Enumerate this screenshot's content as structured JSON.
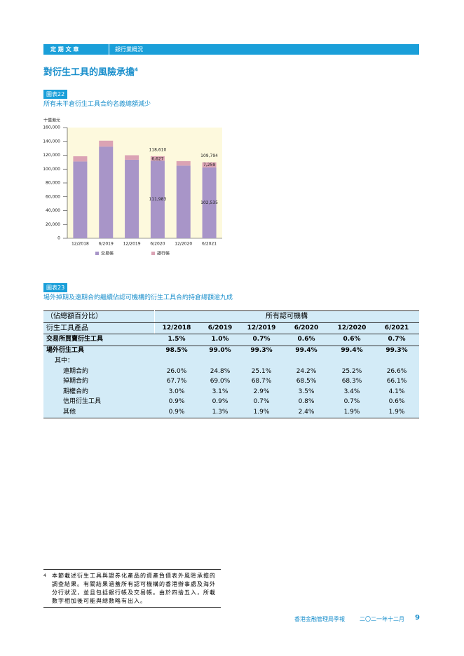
{
  "header": {
    "section": "定 期 文 章",
    "topic": "銀行業概況"
  },
  "title": "對衍生工具的風險承擔",
  "title_note": "4",
  "chart_label": "圖表22",
  "chart_subtitle": "所有未平倉衍生工具合約名義總額減少",
  "chart_data": {
    "type": "bar",
    "stacked": true,
    "y_label": "十億港元",
    "categories": [
      "12/2018",
      "6/2019",
      "12/2019",
      "6/2020",
      "12/2020",
      "6/2021"
    ],
    "series": [
      {
        "name": "交易帳",
        "color": "#a895c8",
        "values": [
          111000,
          132500,
          113500,
          111983,
          105000,
          102535
        ],
        "value_labels": [
          null,
          null,
          null,
          "111,983",
          null,
          "102,535"
        ]
      },
      {
        "name": "銀行帳",
        "color": "#dba3b4",
        "values": [
          7500,
          8500,
          6500,
          6627,
          6500,
          7259
        ],
        "value_labels": [
          null,
          null,
          null,
          "6,627",
          null,
          "7,259"
        ]
      }
    ],
    "totals": {
      "values": [
        null,
        null,
        null,
        118610,
        null,
        109794
      ],
      "value_labels": [
        null,
        null,
        null,
        "118,610",
        null,
        "109,794"
      ]
    },
    "ylim": [
      0,
      160000
    ],
    "yticks": [
      0,
      {
        "value": 20000,
        "label": "20,000"
      },
      {
        "value": 40000,
        "label": "40,000"
      },
      {
        "value": 60000,
        "label": "60,000"
      },
      {
        "value": 80000,
        "label": "80,000"
      },
      {
        "value": 100000,
        "label": "100,000"
      },
      {
        "value": 120000,
        "label": "120,000"
      },
      {
        "value": 140000,
        "label": "140,000"
      },
      {
        "value": 160000,
        "label": "160,000"
      }
    ]
  },
  "table_label": "圖表23",
  "table_subtitle": "場外掉期及遠期合約繼續佔認可機構的衍生工具合約持倉總額逾九成",
  "table": {
    "unit": "（佔總額百分比）",
    "group": "所有認可機構",
    "first_column": "衍生工具產品",
    "columns": [
      "12/2018",
      "6/2019",
      "12/2019",
      "6/2020",
      "12/2020",
      "6/2021"
    ],
    "rows": [
      {
        "label": "交易所買賣衍生工具",
        "values": [
          "1.5%",
          "1.0%",
          "0.7%",
          "0.6%",
          "0.6%",
          "0.7%"
        ]
      },
      {
        "label": "場外衍生工具",
        "values": [
          "98.5%",
          "99.0%",
          "99.3%",
          "99.4%",
          "99.4%",
          "99.3%"
        ]
      },
      {
        "label": "其中："
      },
      {
        "label": "遠期合約",
        "values": [
          "26.0%",
          "24.8%",
          "25.1%",
          "24.2%",
          "25.2%",
          "26.6%"
        ]
      },
      {
        "label": "掉期合約",
        "values": [
          "67.7%",
          "69.0%",
          "68.7%",
          "68.5%",
          "68.3%",
          "66.1%"
        ]
      },
      {
        "label": "期權合約",
        "values": [
          "3.0%",
          "3.1%",
          "2.9%",
          "3.5%",
          "3.4%",
          "4.1%"
        ]
      },
      {
        "label": "信用衍生工具",
        "values": [
          "0.9%",
          "0.9%",
          "0.7%",
          "0.8%",
          "0.7%",
          "0.6%"
        ]
      },
      {
        "label": "其他",
        "values": [
          "0.9%",
          "1.3%",
          "1.9%",
          "2.4%",
          "1.9%",
          "1.9%"
        ]
      }
    ]
  },
  "footnote": {
    "mark": "4",
    "text": "本節載述衍生工具與證券化產品的資產負債表外風險承擔的調查結果。有關結果涵蓋所有認可機構的香港辦事處及海外分行狀況，並且包括銀行帳及交易帳。由於四捨五入，所載數字相加後可能與總數略有出入。"
  },
  "footer": {
    "publication": "香港金融管理局季報",
    "date": "二〇二一年十二月",
    "page": "9"
  }
}
